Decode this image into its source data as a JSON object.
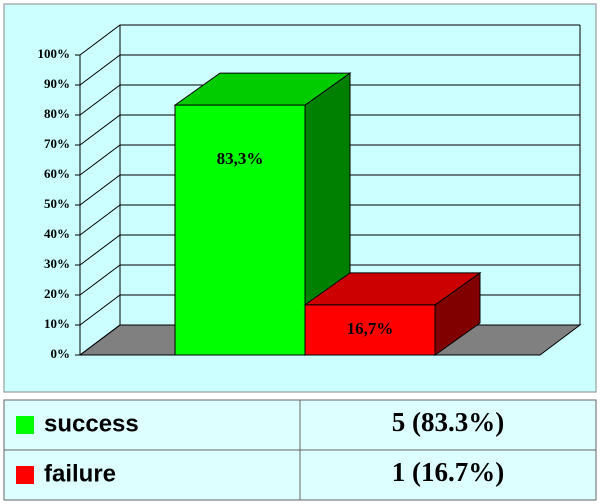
{
  "chart_data": {
    "type": "bar3d",
    "categories": [
      "success",
      "failure"
    ],
    "values": [
      83.3,
      16.7
    ],
    "value_labels": [
      "83,3%",
      "16,7%"
    ],
    "colors": [
      "#00ff00",
      "#ff0000"
    ],
    "legend_values": [
      "5 (83.3%)",
      "1 (16.7%)"
    ],
    "ylim": [
      0,
      100
    ],
    "yticks": [
      {
        "value": 0,
        "label": "0%"
      },
      {
        "value": 10,
        "label": "10%"
      },
      {
        "value": 20,
        "label": "20%"
      },
      {
        "value": 30,
        "label": "30%"
      },
      {
        "value": 40,
        "label": "40%"
      },
      {
        "value": 50,
        "label": "50%"
      },
      {
        "value": 60,
        "label": "60%"
      },
      {
        "value": 70,
        "label": "70%"
      },
      {
        "value": 80,
        "label": "80%"
      },
      {
        "value": 90,
        "label": "90%"
      },
      {
        "value": 100,
        "label": "100%"
      }
    ],
    "grid": true
  }
}
